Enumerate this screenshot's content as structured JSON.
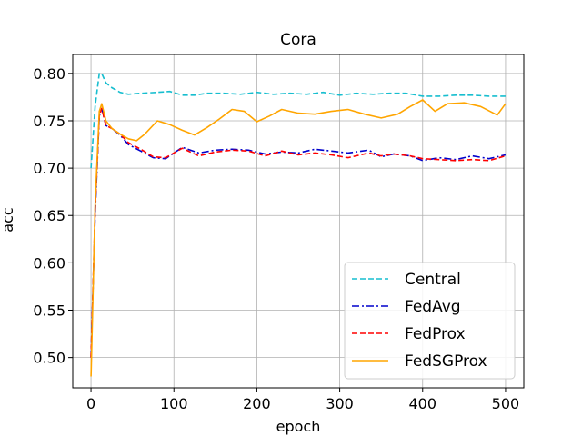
{
  "chart_data": {
    "type": "line",
    "title": "Cora",
    "xlabel": "epoch",
    "ylabel": "acc",
    "xlim": [
      -22,
      522
    ],
    "ylim": [
      0.468,
      0.82
    ],
    "xticks": [
      0,
      100,
      200,
      300,
      400,
      500
    ],
    "yticks": [
      0.5,
      0.55,
      0.6,
      0.65,
      0.7,
      0.75,
      0.8
    ],
    "grid": true,
    "legend_position": "lower-right",
    "series": [
      {
        "name": "Central",
        "color": "#17becf",
        "dash": "dashed",
        "points": [
          [
            0,
            0.7
          ],
          [
            5,
            0.765
          ],
          [
            10,
            0.8
          ],
          [
            13,
            0.8
          ],
          [
            18,
            0.79
          ],
          [
            25,
            0.785
          ],
          [
            35,
            0.78
          ],
          [
            45,
            0.778
          ],
          [
            60,
            0.779
          ],
          [
            80,
            0.78
          ],
          [
            95,
            0.781
          ],
          [
            110,
            0.777
          ],
          [
            125,
            0.777
          ],
          [
            140,
            0.779
          ],
          [
            160,
            0.779
          ],
          [
            180,
            0.778
          ],
          [
            200,
            0.78
          ],
          [
            220,
            0.778
          ],
          [
            240,
            0.779
          ],
          [
            260,
            0.778
          ],
          [
            280,
            0.78
          ],
          [
            300,
            0.777
          ],
          [
            320,
            0.779
          ],
          [
            340,
            0.778
          ],
          [
            360,
            0.779
          ],
          [
            380,
            0.779
          ],
          [
            400,
            0.776
          ],
          [
            420,
            0.776
          ],
          [
            440,
            0.777
          ],
          [
            460,
            0.777
          ],
          [
            480,
            0.776
          ],
          [
            500,
            0.776
          ]
        ]
      },
      {
        "name": "FedAvg",
        "color": "#0000cc",
        "dash": "dashdot",
        "points": [
          [
            0,
            0.5
          ],
          [
            5,
            0.65
          ],
          [
            10,
            0.755
          ],
          [
            13,
            0.763
          ],
          [
            18,
            0.745
          ],
          [
            25,
            0.742
          ],
          [
            35,
            0.735
          ],
          [
            45,
            0.725
          ],
          [
            60,
            0.718
          ],
          [
            75,
            0.711
          ],
          [
            90,
            0.71
          ],
          [
            110,
            0.722
          ],
          [
            130,
            0.716
          ],
          [
            150,
            0.719
          ],
          [
            170,
            0.72
          ],
          [
            190,
            0.719
          ],
          [
            210,
            0.715
          ],
          [
            230,
            0.717
          ],
          [
            250,
            0.716
          ],
          [
            270,
            0.72
          ],
          [
            290,
            0.718
          ],
          [
            310,
            0.716
          ],
          [
            335,
            0.719
          ],
          [
            350,
            0.712
          ],
          [
            365,
            0.715
          ],
          [
            385,
            0.713
          ],
          [
            400,
            0.708
          ],
          [
            420,
            0.711
          ],
          [
            440,
            0.709
          ],
          [
            460,
            0.713
          ],
          [
            480,
            0.71
          ],
          [
            500,
            0.714
          ]
        ]
      },
      {
        "name": "FedProx",
        "color": "#ff0000",
        "dash": "dashed",
        "points": [
          [
            0,
            0.5
          ],
          [
            5,
            0.655
          ],
          [
            10,
            0.755
          ],
          [
            13,
            0.763
          ],
          [
            18,
            0.745
          ],
          [
            25,
            0.742
          ],
          [
            35,
            0.736
          ],
          [
            45,
            0.727
          ],
          [
            60,
            0.72
          ],
          [
            75,
            0.712
          ],
          [
            90,
            0.711
          ],
          [
            110,
            0.721
          ],
          [
            130,
            0.713
          ],
          [
            150,
            0.717
          ],
          [
            170,
            0.719
          ],
          [
            190,
            0.718
          ],
          [
            210,
            0.713
          ],
          [
            230,
            0.718
          ],
          [
            250,
            0.714
          ],
          [
            270,
            0.716
          ],
          [
            290,
            0.714
          ],
          [
            310,
            0.711
          ],
          [
            335,
            0.716
          ],
          [
            350,
            0.713
          ],
          [
            365,
            0.715
          ],
          [
            385,
            0.713
          ],
          [
            400,
            0.71
          ],
          [
            420,
            0.709
          ],
          [
            440,
            0.708
          ],
          [
            460,
            0.709
          ],
          [
            480,
            0.708
          ],
          [
            500,
            0.713
          ]
        ]
      },
      {
        "name": "FedSGProx",
        "color": "#ffa500",
        "dash": "solid",
        "points": [
          [
            0,
            0.48
          ],
          [
            5,
            0.66
          ],
          [
            10,
            0.76
          ],
          [
            13,
            0.768
          ],
          [
            18,
            0.75
          ],
          [
            25,
            0.742
          ],
          [
            35,
            0.736
          ],
          [
            45,
            0.731
          ],
          [
            55,
            0.729
          ],
          [
            65,
            0.736
          ],
          [
            80,
            0.75
          ],
          [
            95,
            0.746
          ],
          [
            110,
            0.74
          ],
          [
            125,
            0.735
          ],
          [
            140,
            0.743
          ],
          [
            155,
            0.752
          ],
          [
            170,
            0.762
          ],
          [
            185,
            0.76
          ],
          [
            200,
            0.749
          ],
          [
            215,
            0.755
          ],
          [
            230,
            0.762
          ],
          [
            250,
            0.758
          ],
          [
            270,
            0.757
          ],
          [
            290,
            0.76
          ],
          [
            310,
            0.762
          ],
          [
            330,
            0.757
          ],
          [
            350,
            0.753
          ],
          [
            370,
            0.757
          ],
          [
            385,
            0.765
          ],
          [
            400,
            0.772
          ],
          [
            415,
            0.76
          ],
          [
            430,
            0.768
          ],
          [
            450,
            0.769
          ],
          [
            470,
            0.765
          ],
          [
            490,
            0.756
          ],
          [
            500,
            0.768
          ]
        ]
      }
    ]
  }
}
